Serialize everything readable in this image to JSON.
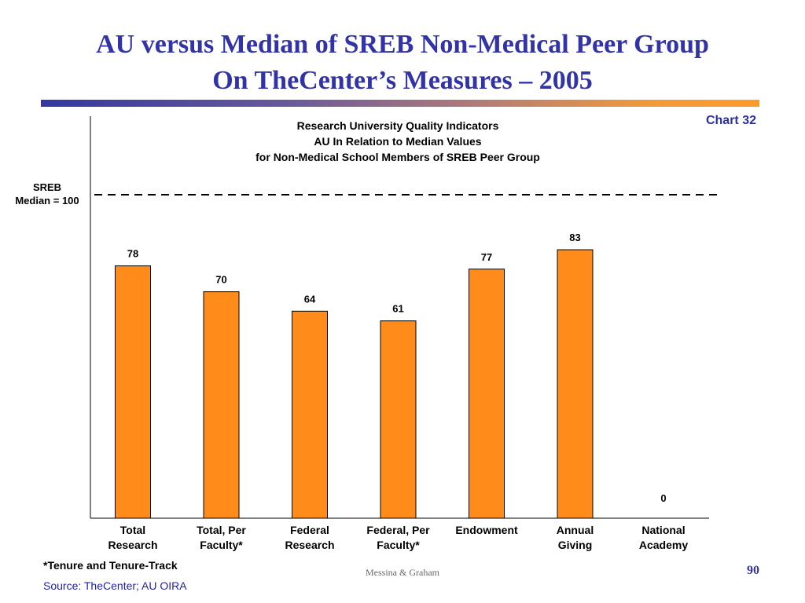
{
  "slide": {
    "title_line1": "AU versus Median of SREB Non-Medical Peer Group",
    "title_line2": "On TheCenter’s Measures – 2005",
    "chart_number": "Chart 32",
    "footnote": "*Tenure and Tenure-Track",
    "source": "Source:  TheCenter; AU OIRA",
    "author": "Messina & Graham",
    "page_number": "90"
  },
  "colors": {
    "title": "#3333a8",
    "bar": "#ff8c1a",
    "bar_outline": "#000000",
    "source_text": "#2222aa"
  },
  "chart_data": {
    "type": "bar",
    "title_lines": [
      "Research University Quality Indicators",
      "AU In Relation to Median Values",
      "for Non-Medical School Members of SREB Peer Group"
    ],
    "categories": [
      [
        "Total",
        "Research"
      ],
      [
        "Total, Per",
        "Faculty*"
      ],
      [
        "Federal",
        "Research"
      ],
      [
        "Federal, Per",
        "Faculty*"
      ],
      [
        "Endowment"
      ],
      [
        "Annual",
        "Giving"
      ],
      [
        "National",
        "Academy"
      ]
    ],
    "values": [
      78,
      70,
      64,
      61,
      77,
      83,
      0
    ],
    "ylim": [
      0,
      100
    ],
    "reference_line": {
      "value": 100,
      "label_lines": [
        "SREB",
        "Median = 100"
      ],
      "style": "dashed"
    },
    "xlabel": "",
    "ylabel": "",
    "grid": false,
    "legend": "none"
  }
}
